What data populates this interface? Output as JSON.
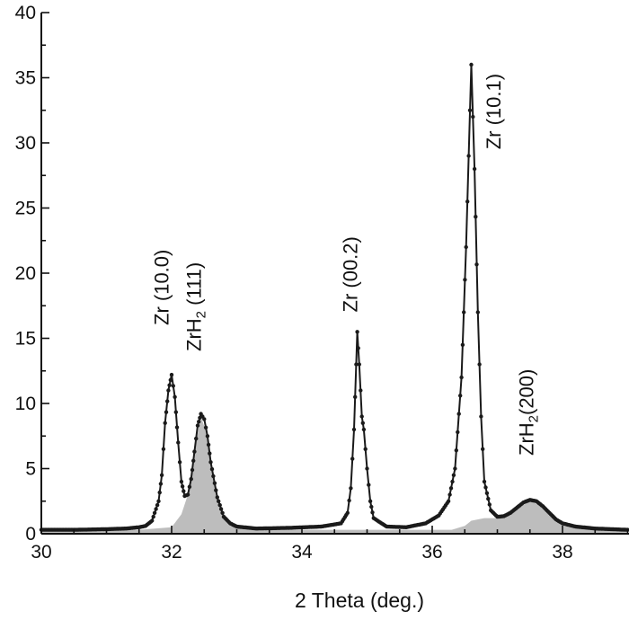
{
  "chart_data": {
    "type": "line",
    "xlabel": "2 Theta (deg.)",
    "xlim": [
      30,
      39
    ],
    "ylim": [
      0,
      40
    ],
    "x_ticks": [
      30,
      32,
      34,
      36,
      38
    ],
    "y_ticks": [
      0,
      5,
      10,
      15,
      20,
      25,
      30,
      35,
      40
    ],
    "grid": false,
    "series": [
      {
        "role": "measured",
        "marker": "dots",
        "color": "#1a1a1a",
        "points": [
          [
            30.0,
            0.3
          ],
          [
            30.5,
            0.3
          ],
          [
            31.0,
            0.35
          ],
          [
            31.3,
            0.4
          ],
          [
            31.5,
            0.5
          ],
          [
            31.6,
            0.6
          ],
          [
            31.7,
            1.0
          ],
          [
            31.8,
            2.5
          ],
          [
            31.85,
            4.5
          ],
          [
            31.9,
            8.5
          ],
          [
            31.95,
            11.0
          ],
          [
            32.0,
            12.2
          ],
          [
            32.05,
            10.5
          ],
          [
            32.1,
            7.0
          ],
          [
            32.15,
            4.0
          ],
          [
            32.2,
            2.9
          ],
          [
            32.25,
            3.0
          ],
          [
            32.3,
            4.2
          ],
          [
            32.35,
            6.3
          ],
          [
            32.4,
            8.3
          ],
          [
            32.45,
            9.2
          ],
          [
            32.5,
            8.8
          ],
          [
            32.55,
            7.5
          ],
          [
            32.6,
            5.5
          ],
          [
            32.7,
            2.8
          ],
          [
            32.8,
            1.3
          ],
          [
            32.9,
            0.8
          ],
          [
            33.0,
            0.55
          ],
          [
            33.3,
            0.4
          ],
          [
            33.8,
            0.45
          ],
          [
            34.3,
            0.55
          ],
          [
            34.6,
            0.8
          ],
          [
            34.7,
            1.6
          ],
          [
            34.75,
            3.5
          ],
          [
            34.8,
            8.0
          ],
          [
            34.85,
            15.5
          ],
          [
            34.88,
            13.0
          ],
          [
            34.92,
            9.0
          ],
          [
            34.95,
            8.0
          ],
          [
            35.0,
            5.0
          ],
          [
            35.05,
            2.5
          ],
          [
            35.1,
            1.2
          ],
          [
            35.3,
            0.55
          ],
          [
            35.6,
            0.5
          ],
          [
            35.9,
            0.8
          ],
          [
            36.1,
            1.4
          ],
          [
            36.25,
            2.5
          ],
          [
            36.35,
            5.0
          ],
          [
            36.45,
            12.0
          ],
          [
            36.52,
            22.0
          ],
          [
            36.6,
            36.0
          ],
          [
            36.65,
            28.0
          ],
          [
            36.7,
            17.0
          ],
          [
            36.75,
            9.0
          ],
          [
            36.8,
            4.0
          ],
          [
            36.9,
            1.8
          ],
          [
            37.0,
            1.3
          ],
          [
            37.1,
            1.35
          ],
          [
            37.2,
            1.6
          ],
          [
            37.3,
            2.0
          ],
          [
            37.4,
            2.4
          ],
          [
            37.5,
            2.6
          ],
          [
            37.6,
            2.5
          ],
          [
            37.7,
            2.1
          ],
          [
            37.8,
            1.6
          ],
          [
            37.9,
            1.1
          ],
          [
            38.0,
            0.8
          ],
          [
            38.2,
            0.55
          ],
          [
            38.5,
            0.4
          ],
          [
            39.0,
            0.3
          ]
        ]
      },
      {
        "role": "ZrH2 component (shaded)",
        "fill": "#bdbdbd",
        "points": [
          [
            30.0,
            0.3
          ],
          [
            31.5,
            0.3
          ],
          [
            32.0,
            0.5
          ],
          [
            32.15,
            1.5
          ],
          [
            32.25,
            3.0
          ],
          [
            32.35,
            6.3
          ],
          [
            32.45,
            9.0
          ],
          [
            32.55,
            7.5
          ],
          [
            32.65,
            4.0
          ],
          [
            32.8,
            1.2
          ],
          [
            33.0,
            0.45
          ],
          [
            33.5,
            0.3
          ],
          [
            35.5,
            0.3
          ],
          [
            36.3,
            0.3
          ],
          [
            36.5,
            0.6
          ],
          [
            36.6,
            1.0
          ],
          [
            36.8,
            1.2
          ],
          [
            37.0,
            1.2
          ],
          [
            37.2,
            1.5
          ],
          [
            37.4,
            2.2
          ],
          [
            37.5,
            2.5
          ],
          [
            37.7,
            2.1
          ],
          [
            37.9,
            1.1
          ],
          [
            38.2,
            0.5
          ],
          [
            39.0,
            0.3
          ]
        ]
      }
    ],
    "annotations": [
      {
        "text": "Zr (10.0)",
        "x": 31.95,
        "y": 16.0
      },
      {
        "text": "ZrH",
        "sub": "2",
        "after": " (111)",
        "x": 32.45,
        "y": 14.0
      },
      {
        "text": "Zr (00.2)",
        "x": 34.85,
        "y": 17.0
      },
      {
        "text": "Zr (10.1)",
        "x": 37.05,
        "y": 29.5
      },
      {
        "text": "ZrH",
        "sub": "2",
        "after": "(200)",
        "x": 37.55,
        "y": 6.0
      }
    ]
  }
}
